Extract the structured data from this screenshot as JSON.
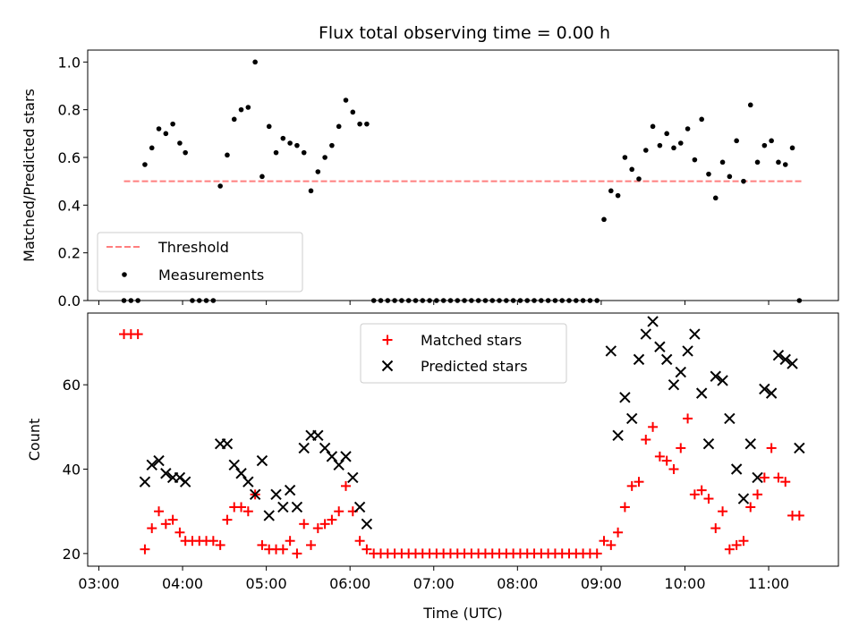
{
  "chart_data": [
    {
      "type": "scatter",
      "title": "Flux total observing time = 0.00 h",
      "ylabel": "Matched/Predicted stars",
      "xlim": [
        "02:52",
        "11:50"
      ],
      "ylim": [
        0,
        1.05
      ],
      "yticks": [
        "0.0",
        "0.2",
        "0.4",
        "0.6",
        "0.8",
        "1.0"
      ],
      "threshold": {
        "name": "Threshold",
        "value": 0.5,
        "x_start": "03:18",
        "x_end": "11:25",
        "color": "#ff7f7f"
      },
      "legend": {
        "placement": "lower-left",
        "entries": [
          "Threshold",
          "Measurements"
        ]
      },
      "series": [
        {
          "name": "Measurements",
          "color": "#000000",
          "points": [
            [
              "03:18",
              0
            ],
            [
              "03:23",
              0
            ],
            [
              "03:28",
              0
            ],
            [
              "03:33",
              0.57
            ],
            [
              "03:38",
              0.64
            ],
            [
              "03:43",
              0.72
            ],
            [
              "03:48",
              0.7
            ],
            [
              "03:53",
              0.74
            ],
            [
              "03:58",
              0.66
            ],
            [
              "04:02",
              0.62
            ],
            [
              "04:07",
              0
            ],
            [
              "04:12",
              0
            ],
            [
              "04:17",
              0
            ],
            [
              "04:22",
              0
            ],
            [
              "04:27",
              0.48
            ],
            [
              "04:32",
              0.61
            ],
            [
              "04:37",
              0.76
            ],
            [
              "04:42",
              0.8
            ],
            [
              "04:47",
              0.81
            ],
            [
              "04:52",
              1.0
            ],
            [
              "04:57",
              0.52
            ],
            [
              "05:02",
              0.73
            ],
            [
              "05:07",
              0.62
            ],
            [
              "05:12",
              0.68
            ],
            [
              "05:17",
              0.66
            ],
            [
              "05:22",
              0.65
            ],
            [
              "05:27",
              0.62
            ],
            [
              "05:32",
              0.46
            ],
            [
              "05:37",
              0.54
            ],
            [
              "05:42",
              0.6
            ],
            [
              "05:47",
              0.65
            ],
            [
              "05:52",
              0.73
            ],
            [
              "05:57",
              0.84
            ],
            [
              "06:02",
              0.79
            ],
            [
              "06:07",
              0.74
            ],
            [
              "06:12",
              0.74
            ],
            [
              "06:17",
              0
            ],
            [
              "06:22",
              0
            ],
            [
              "06:27",
              0
            ],
            [
              "06:32",
              0
            ],
            [
              "06:37",
              0
            ],
            [
              "06:42",
              0
            ],
            [
              "06:47",
              0
            ],
            [
              "06:52",
              0
            ],
            [
              "06:57",
              0
            ],
            [
              "07:02",
              0
            ],
            [
              "07:07",
              0
            ],
            [
              "07:12",
              0
            ],
            [
              "07:17",
              0
            ],
            [
              "07:22",
              0
            ],
            [
              "07:27",
              0
            ],
            [
              "07:32",
              0
            ],
            [
              "07:37",
              0
            ],
            [
              "07:42",
              0
            ],
            [
              "07:47",
              0
            ],
            [
              "07:52",
              0
            ],
            [
              "07:57",
              0
            ],
            [
              "08:02",
              0
            ],
            [
              "08:07",
              0
            ],
            [
              "08:12",
              0
            ],
            [
              "08:17",
              0
            ],
            [
              "08:22",
              0
            ],
            [
              "08:27",
              0
            ],
            [
              "08:32",
              0
            ],
            [
              "08:37",
              0
            ],
            [
              "08:42",
              0
            ],
            [
              "08:47",
              0
            ],
            [
              "08:52",
              0
            ],
            [
              "08:57",
              0
            ],
            [
              "09:02",
              0.34
            ],
            [
              "09:07",
              0.46
            ],
            [
              "09:12",
              0.44
            ],
            [
              "09:17",
              0.6
            ],
            [
              "09:22",
              0.55
            ],
            [
              "09:27",
              0.51
            ],
            [
              "09:32",
              0.63
            ],
            [
              "09:37",
              0.73
            ],
            [
              "09:42",
              0.65
            ],
            [
              "09:47",
              0.7
            ],
            [
              "09:52",
              0.64
            ],
            [
              "09:57",
              0.66
            ],
            [
              "10:02",
              0.72
            ],
            [
              "10:07",
              0.59
            ],
            [
              "10:12",
              0.76
            ],
            [
              "10:17",
              0.53
            ],
            [
              "10:22",
              0.43
            ],
            [
              "10:27",
              0.58
            ],
            [
              "10:32",
              0.52
            ],
            [
              "10:37",
              0.67
            ],
            [
              "10:42",
              0.5
            ],
            [
              "10:47",
              0.82
            ],
            [
              "10:52",
              0.58
            ],
            [
              "10:57",
              0.65
            ],
            [
              "11:02",
              0.67
            ],
            [
              "11:07",
              0.58
            ],
            [
              "11:12",
              0.57
            ],
            [
              "11:17",
              0.64
            ],
            [
              "11:22",
              0
            ]
          ]
        }
      ]
    },
    {
      "type": "scatter",
      "title": "",
      "xlabel": "Time (UTC)",
      "ylabel": "Count",
      "xlim": [
        "02:52",
        "11:50"
      ],
      "ylim": [
        17,
        77
      ],
      "yticks": [
        "20",
        "40",
        "60"
      ],
      "xticks": [
        "03:00",
        "04:00",
        "05:00",
        "06:00",
        "07:00",
        "08:00",
        "09:00",
        "10:00",
        "11:00"
      ],
      "legend": {
        "placement": "upper-center",
        "entries": [
          "Matched stars",
          "Predicted stars"
        ]
      },
      "series": [
        {
          "name": "Matched stars",
          "marker": "plus",
          "color": "#ff0000",
          "points": [
            [
              "03:18",
              72
            ],
            [
              "03:23",
              72
            ],
            [
              "03:28",
              72
            ],
            [
              "03:33",
              21
            ],
            [
              "03:38",
              26
            ],
            [
              "03:43",
              30
            ],
            [
              "03:48",
              27
            ],
            [
              "03:53",
              28
            ],
            [
              "03:58",
              25
            ],
            [
              "04:02",
              23
            ],
            [
              "04:07",
              23
            ],
            [
              "04:12",
              23
            ],
            [
              "04:17",
              23
            ],
            [
              "04:22",
              23
            ],
            [
              "04:27",
              22
            ],
            [
              "04:32",
              28
            ],
            [
              "04:37",
              31
            ],
            [
              "04:42",
              31
            ],
            [
              "04:47",
              30
            ],
            [
              "04:52",
              34
            ],
            [
              "04:57",
              22
            ],
            [
              "05:02",
              21
            ],
            [
              "05:07",
              21
            ],
            [
              "05:12",
              21
            ],
            [
              "05:17",
              23
            ],
            [
              "05:22",
              20
            ],
            [
              "05:27",
              27
            ],
            [
              "05:32",
              22
            ],
            [
              "05:37",
              26
            ],
            [
              "05:42",
              27
            ],
            [
              "05:47",
              28
            ],
            [
              "05:52",
              30
            ],
            [
              "05:57",
              36
            ],
            [
              "06:02",
              30
            ],
            [
              "06:07",
              23
            ],
            [
              "06:12",
              21
            ],
            [
              "06:17",
              20
            ],
            [
              "06:22",
              20
            ],
            [
              "06:27",
              20
            ],
            [
              "06:32",
              20
            ],
            [
              "06:37",
              20
            ],
            [
              "06:42",
              20
            ],
            [
              "06:47",
              20
            ],
            [
              "06:52",
              20
            ],
            [
              "06:57",
              20
            ],
            [
              "07:02",
              20
            ],
            [
              "07:07",
              20
            ],
            [
              "07:12",
              20
            ],
            [
              "07:17",
              20
            ],
            [
              "07:22",
              20
            ],
            [
              "07:27",
              20
            ],
            [
              "07:32",
              20
            ],
            [
              "07:37",
              20
            ],
            [
              "07:42",
              20
            ],
            [
              "07:47",
              20
            ],
            [
              "07:52",
              20
            ],
            [
              "07:57",
              20
            ],
            [
              "08:02",
              20
            ],
            [
              "08:07",
              20
            ],
            [
              "08:12",
              20
            ],
            [
              "08:17",
              20
            ],
            [
              "08:22",
              20
            ],
            [
              "08:27",
              20
            ],
            [
              "08:32",
              20
            ],
            [
              "08:37",
              20
            ],
            [
              "08:42",
              20
            ],
            [
              "08:47",
              20
            ],
            [
              "08:52",
              20
            ],
            [
              "08:57",
              20
            ],
            [
              "09:02",
              23
            ],
            [
              "09:07",
              22
            ],
            [
              "09:12",
              25
            ],
            [
              "09:17",
              31
            ],
            [
              "09:22",
              36
            ],
            [
              "09:27",
              37
            ],
            [
              "09:32",
              47
            ],
            [
              "09:37",
              50
            ],
            [
              "09:42",
              43
            ],
            [
              "09:47",
              42
            ],
            [
              "09:52",
              40
            ],
            [
              "09:57",
              45
            ],
            [
              "10:02",
              52
            ],
            [
              "10:07",
              34
            ],
            [
              "10:12",
              35
            ],
            [
              "10:17",
              33
            ],
            [
              "10:22",
              26
            ],
            [
              "10:27",
              30
            ],
            [
              "10:32",
              21
            ],
            [
              "10:37",
              22
            ],
            [
              "10:42",
              23
            ],
            [
              "10:47",
              31
            ],
            [
              "10:52",
              34
            ],
            [
              "10:57",
              38
            ],
            [
              "11:02",
              45
            ],
            [
              "11:07",
              38
            ],
            [
              "11:12",
              37
            ],
            [
              "11:17",
              29
            ],
            [
              "11:22",
              29
            ]
          ]
        },
        {
          "name": "Predicted stars",
          "marker": "x",
          "color": "#000000",
          "points": [
            [
              "03:33",
              37
            ],
            [
              "03:38",
              41
            ],
            [
              "03:43",
              42
            ],
            [
              "03:48",
              39
            ],
            [
              "03:53",
              38
            ],
            [
              "03:58",
              38
            ],
            [
              "04:02",
              37
            ],
            [
              "04:27",
              46
            ],
            [
              "04:32",
              46
            ],
            [
              "04:37",
              41
            ],
            [
              "04:42",
              39
            ],
            [
              "04:47",
              37
            ],
            [
              "04:52",
              34
            ],
            [
              "04:57",
              42
            ],
            [
              "05:02",
              29
            ],
            [
              "05:07",
              34
            ],
            [
              "05:12",
              31
            ],
            [
              "05:17",
              35
            ],
            [
              "05:22",
              31
            ],
            [
              "05:27",
              45
            ],
            [
              "05:32",
              48
            ],
            [
              "05:37",
              48
            ],
            [
              "05:42",
              45
            ],
            [
              "05:47",
              43
            ],
            [
              "05:52",
              41
            ],
            [
              "05:57",
              43
            ],
            [
              "06:02",
              38
            ],
            [
              "06:07",
              31
            ],
            [
              "06:12",
              27
            ],
            [
              "09:07",
              68
            ],
            [
              "09:12",
              48
            ],
            [
              "09:17",
              57
            ],
            [
              "09:22",
              52
            ],
            [
              "09:27",
              66
            ],
            [
              "09:32",
              72
            ],
            [
              "09:37",
              75
            ],
            [
              "09:42",
              69
            ],
            [
              "09:47",
              66
            ],
            [
              "09:52",
              60
            ],
            [
              "09:57",
              63
            ],
            [
              "10:02",
              68
            ],
            [
              "10:07",
              72
            ],
            [
              "10:12",
              58
            ],
            [
              "10:17",
              46
            ],
            [
              "10:22",
              62
            ],
            [
              "10:27",
              61
            ],
            [
              "10:32",
              52
            ],
            [
              "10:37",
              40
            ],
            [
              "10:42",
              33
            ],
            [
              "10:47",
              46
            ],
            [
              "10:52",
              38
            ],
            [
              "10:57",
              59
            ],
            [
              "11:02",
              58
            ],
            [
              "11:07",
              67
            ],
            [
              "11:12",
              66
            ],
            [
              "11:17",
              65
            ],
            [
              "11:22",
              45
            ]
          ]
        }
      ]
    }
  ]
}
